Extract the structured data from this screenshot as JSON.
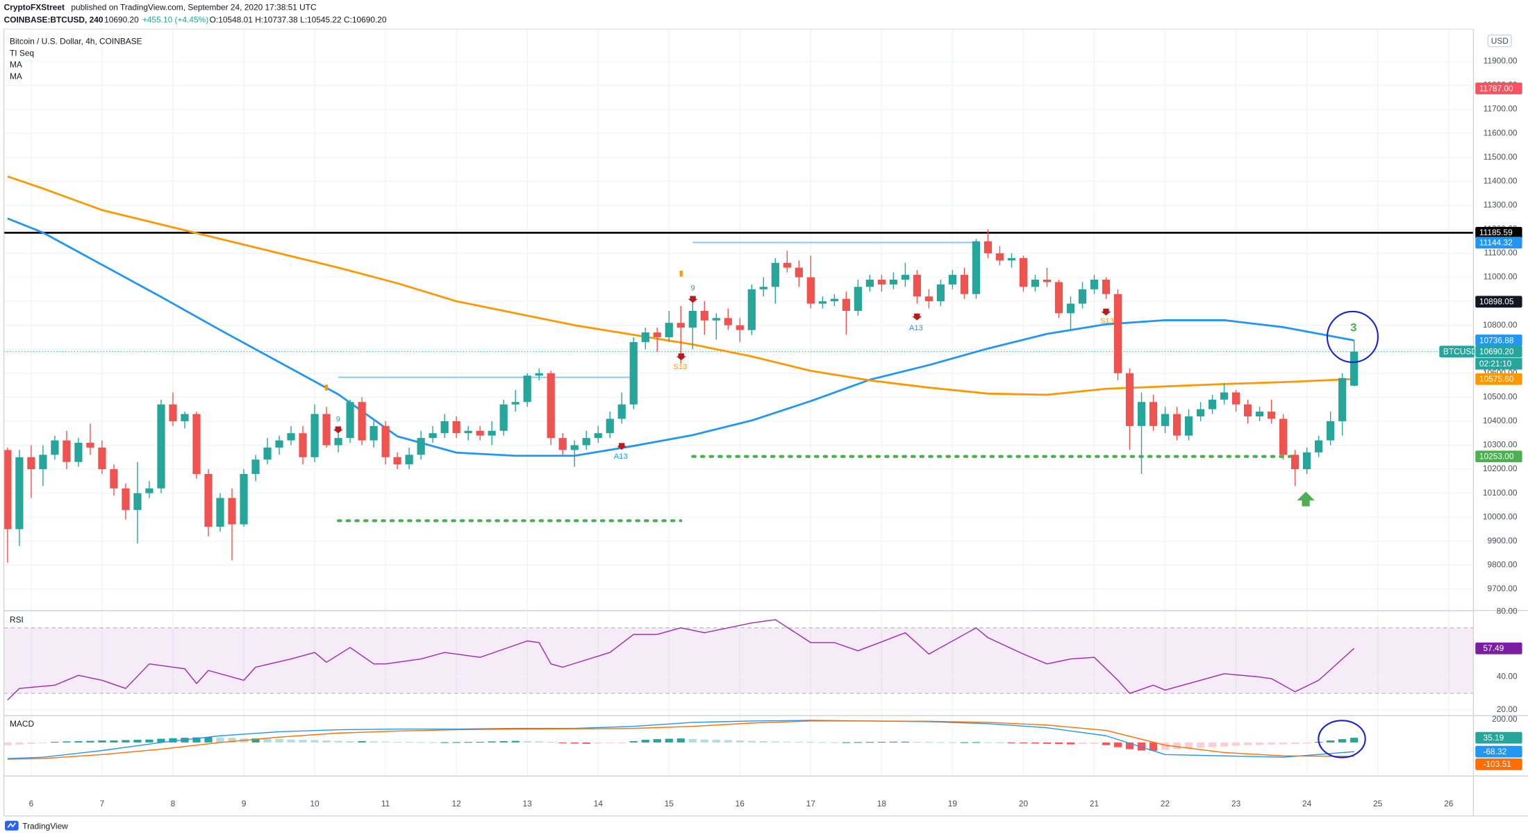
{
  "header": {
    "author": "CryptoFXStreet",
    "published": "published on TradingView.com, September 24, 2020 17:38:51 UTC",
    "symbol": "COINBASE:BTCUSD, 240",
    "last": "10690.20",
    "change": "+455.10 (+4.45%)",
    "ohlc": "O:10548.01 H:10737.38 L:10545.22 C:10690.20",
    "footer": "TradingView"
  },
  "chart_data": {
    "type": "candlestick",
    "title": "Bitcoin / U.S. Dollar, 4h, COINBASE",
    "indicator_labels": [
      "TI Seq"
    ],
    "currency": "USD",
    "up_color": "#26a69a",
    "down_color": "#ef5350",
    "categories": [
      null,
      null,
      null,
      null,
      null,
      null,
      null,
      null,
      null,
      null,
      null,
      null,
      null,
      null,
      null,
      null,
      null,
      null,
      null,
      null,
      null,
      null,
      null,
      null,
      null,
      null,
      null,
      null,
      null,
      null,
      null,
      null,
      null,
      null,
      null,
      null,
      null,
      null,
      null,
      null,
      null,
      null,
      null,
      null,
      null,
      null,
      null,
      null,
      null,
      null,
      null,
      null,
      null,
      null,
      null,
      null,
      null,
      null,
      null,
      null,
      null,
      null,
      null,
      null,
      null,
      null,
      null,
      null,
      null,
      null,
      null,
      null,
      null,
      null,
      null,
      null,
      null,
      null,
      null,
      null,
      null,
      null,
      null,
      null,
      null,
      null,
      null,
      null,
      null,
      null,
      null,
      null,
      null,
      null,
      null,
      null,
      null,
      null,
      null,
      null,
      null,
      null,
      null,
      null,
      null,
      null,
      null,
      null,
      null,
      null,
      null,
      null,
      null,
      null,
      null
    ],
    "open": [
      10280,
      9950,
      10250,
      10200,
      10260,
      10320,
      10230,
      10310,
      10290,
      10200,
      10120,
      10030,
      10100,
      10120,
      10470,
      10400,
      10430,
      10180,
      9960,
      10080,
      9970,
      10180,
      10240,
      10290,
      10320,
      10350,
      10250,
      10430,
      10300,
      10330,
      10480,
      10320,
      10380,
      10250,
      10220,
      10260,
      10330,
      10350,
      10400,
      10350,
      10360,
      10340,
      10360,
      10470,
      10480,
      10590,
      10600,
      10330,
      10280,
      10300,
      10330,
      10350,
      10410,
      10470,
      10730,
      10770,
      10750,
      10810,
      10790,
      10860,
      10820,
      10830,
      10800,
      10780,
      10950,
      10960,
      11060,
      11040,
      11000,
      10890,
      10900,
      10910,
      10860,
      10960,
      10990,
      10970,
      10990,
      11010,
      10920,
      10900,
      10970,
      11010,
      10930,
      11150,
      11100,
      11070,
      11080,
      10960,
      10990,
      10980,
      10850,
      10890,
      10950,
      10990,
      10930,
      10600,
      10380,
      10480,
      10380,
      10430,
      10340,
      10420,
      10450,
      10490,
      10520,
      10470,
      10420,
      10440,
      10410,
      10260,
      10200,
      10270,
      10320,
      10400,
      10548.01
    ],
    "high": [
      10290,
      10280,
      10300,
      10300,
      10340,
      10360,
      10330,
      10390,
      10320,
      10220,
      10140,
      10230,
      10150,
      10490,
      10520,
      10440,
      10440,
      10200,
      10100,
      10120,
      10200,
      10260,
      10330,
      10340,
      10380,
      10380,
      10470,
      10460,
      10360,
      10490,
      10500,
      10400,
      10400,
      10270,
      10290,
      10360,
      10380,
      10430,
      10420,
      10380,
      10380,
      10400,
      10490,
      10530,
      10600,
      10620,
      10610,
      10350,
      10320,
      10360,
      10380,
      10440,
      10520,
      10750,
      10790,
      10790,
      10860,
      10880,
      10920,
      10900,
      10850,
      10870,
      10830,
      10970,
      11000,
      11080,
      11110,
      11070,
      11090,
      10920,
      10930,
      10940,
      10990,
      11010,
      11010,
      11020,
      11060,
      11030,
      10950,
      10990,
      11030,
      11040,
      11160,
      11200,
      11130,
      11100,
      11090,
      11010,
      11040,
      10990,
      10920,
      10980,
      11010,
      11000,
      10950,
      10620,
      10520,
      10510,
      10460,
      10460,
      10450,
      10480,
      10510,
      10560,
      10530,
      10490,
      10460,
      10490,
      10430,
      10280,
      10290,
      10340,
      10440,
      10600,
      10737.38
    ],
    "low": [
      9810,
      9880,
      10080,
      10130,
      10240,
      10200,
      10210,
      10260,
      10180,
      10090,
      9990,
      9890,
      10080,
      10100,
      10380,
      10370,
      10160,
      9920,
      9940,
      9820,
      9960,
      10150,
      10220,
      10260,
      10300,
      10220,
      10230,
      10290,
      10270,
      10310,
      10300,
      10290,
      10220,
      10200,
      10200,
      10240,
      10310,
      10330,
      10330,
      10320,
      10320,
      10300,
      10340,
      10440,
      10460,
      10570,
      10300,
      10260,
      10210,
      10280,
      10310,
      10330,
      10390,
      10450,
      10700,
      10690,
      10730,
      10640,
      10700,
      10760,
      10740,
      10780,
      10730,
      10760,
      10920,
      10890,
      11020,
      10960,
      10870,
      10870,
      10880,
      10760,
      10840,
      10940,
      10940,
      10950,
      10960,
      10890,
      10870,
      10880,
      10950,
      10910,
      10910,
      11080,
      11050,
      11040,
      10940,
      10940,
      10960,
      10830,
      10780,
      10870,
      10930,
      10910,
      10570,
      10280,
      10180,
      10360,
      10350,
      10320,
      10320,
      10400,
      10430,
      10470,
      10440,
      10390,
      10400,
      10390,
      10240,
      10130,
      10180,
      10250,
      10300,
      10340,
      10545.22
    ],
    "close": [
      9950,
      10250,
      10200,
      10260,
      10320,
      10230,
      10310,
      10290,
      10200,
      10120,
      10030,
      10100,
      10120,
      10470,
      10400,
      10430,
      10180,
      9960,
      10080,
      9970,
      10180,
      10240,
      10290,
      10320,
      10350,
      10250,
      10430,
      10300,
      10330,
      10480,
      10320,
      10380,
      10250,
      10220,
      10260,
      10330,
      10350,
      10400,
      10350,
      10360,
      10340,
      10360,
      10470,
      10480,
      10590,
      10600,
      10330,
      10280,
      10300,
      10330,
      10350,
      10410,
      10470,
      10730,
      10770,
      10750,
      10810,
      10790,
      10860,
      10820,
      10830,
      10800,
      10780,
      10950,
      10960,
      11060,
      11040,
      11000,
      10890,
      10900,
      10910,
      10860,
      10960,
      10990,
      10970,
      10990,
      11010,
      10920,
      10900,
      10970,
      11010,
      10930,
      11150,
      11100,
      11070,
      11080,
      10960,
      10990,
      10980,
      10850,
      10890,
      10950,
      10990,
      10930,
      10600,
      10380,
      10480,
      10380,
      10430,
      10340,
      10420,
      10450,
      10490,
      10520,
      10470,
      10420,
      10440,
      10410,
      10260,
      10200,
      10270,
      10320,
      10400,
      10580,
      10690.2
    ],
    "xlim": [
      -0.31,
      124.1
    ],
    "xticks": [
      {
        "value": 2,
        "label": "6"
      },
      {
        "value": 8,
        "label": "7"
      },
      {
        "value": 14,
        "label": "8"
      },
      {
        "value": 20,
        "label": "9"
      },
      {
        "value": 26,
        "label": "10"
      },
      {
        "value": 32,
        "label": "11"
      },
      {
        "value": 38,
        "label": "12"
      },
      {
        "value": 44,
        "label": "13"
      },
      {
        "value": 50,
        "label": "14"
      },
      {
        "value": 56,
        "label": "15"
      },
      {
        "value": 62,
        "label": "16"
      },
      {
        "value": 68,
        "label": "17"
      },
      {
        "value": 74,
        "label": "18"
      },
      {
        "value": 80,
        "label": "19"
      },
      {
        "value": 86,
        "label": "20"
      },
      {
        "value": 92,
        "label": "21"
      },
      {
        "value": 98,
        "label": "22"
      },
      {
        "value": 104,
        "label": "23"
      },
      {
        "value": 110,
        "label": "24"
      },
      {
        "value": 116,
        "label": "25"
      },
      {
        "value": 122,
        "label": "26"
      }
    ],
    "ylim": [
      9615,
      12034
    ],
    "yticks": [
      {
        "value": 9700,
        "label": "9700.00"
      },
      {
        "value": 9800,
        "label": "9800.00"
      },
      {
        "value": 9900,
        "label": "9900.00"
      },
      {
        "value": 10000,
        "label": "10000.00"
      },
      {
        "value": 10100,
        "label": "10100.00"
      },
      {
        "value": 10200,
        "label": "10200.00"
      },
      {
        "value": 10300,
        "label": "10300.00"
      },
      {
        "value": 10400,
        "label": "10400.00"
      },
      {
        "value": 10500,
        "label": "10500.00"
      },
      {
        "value": 10600,
        "label": "10600.00"
      },
      {
        "value": 10700,
        "label": "10700.00"
      },
      {
        "value": 10800,
        "label": "10800.00"
      },
      {
        "value": 10900,
        "label": "10900.00"
      },
      {
        "value": 11000,
        "label": "11000.00"
      },
      {
        "value": 11100,
        "label": "11100.00"
      },
      {
        "value": 11200,
        "label": "11200.00"
      },
      {
        "value": 11300,
        "label": "11300.00"
      },
      {
        "value": 11400,
        "label": "11400.00"
      },
      {
        "value": 11500,
        "label": "11500.00"
      },
      {
        "value": 11600,
        "label": "11600.00"
      },
      {
        "value": 11700,
        "label": "11700.00"
      },
      {
        "value": 11800,
        "label": "11800.00"
      },
      {
        "value": 11900,
        "label": "11900.00"
      }
    ],
    "grid": true,
    "moving_averages": [
      {
        "label": "MA",
        "color": "#2196f3",
        "x": [
          0,
          3,
          8,
          13,
          18,
          23,
          28,
          33,
          38,
          43,
          48,
          53,
          58,
          63,
          68,
          73,
          78,
          83,
          88,
          93,
          98,
          103,
          108,
          114
        ],
        "values": [
          11245,
          11186,
          11052,
          10918,
          10780,
          10646,
          10512,
          10337,
          10269,
          10256,
          10256,
          10297,
          10342,
          10403,
          10484,
          10573,
          10634,
          10703,
          10764,
          10804,
          10821,
          10821,
          10792,
          10736.88
        ]
      },
      {
        "label": "MA",
        "color": "#ff9800",
        "x": [
          0,
          3,
          8,
          13,
          18,
          23,
          28,
          33,
          38,
          43,
          48,
          53,
          58,
          63,
          68,
          73,
          78,
          83,
          88,
          93,
          98,
          103,
          108,
          114
        ],
        "values": [
          11420,
          11370,
          11280,
          11220,
          11160,
          11100,
          11040,
          10975,
          10900,
          10850,
          10800,
          10760,
          10720,
          10670,
          10610,
          10570,
          10540,
          10515,
          10510,
          10535,
          10545,
          10555,
          10563,
          10575.6
        ]
      }
    ],
    "levels": [
      {
        "value": 11185.59,
        "x": [
          -0.31,
          124.1
        ],
        "color": "#000000",
        "style": "solid"
      },
      {
        "value": 10583,
        "x": [
          28,
          53
        ],
        "color": "#90caf9",
        "style": "solid"
      },
      {
        "value": 11145,
        "x": [
          58,
          82
        ],
        "color": "#90caf9",
        "style": "solid"
      },
      {
        "value": 9985,
        "x": [
          28,
          57
        ],
        "color": "#4caf50",
        "style": "dotted"
      },
      {
        "value": 10253,
        "x": [
          58,
          109
        ],
        "color": "#4caf50",
        "style": "dotted"
      }
    ],
    "badges": [
      {
        "value": 11787,
        "label": "11787.00",
        "color": "#f7525f"
      },
      {
        "value": 11185.59,
        "label": "11185.59",
        "color": "#000000"
      },
      {
        "value": 11144.32,
        "label": "11144.32",
        "color": "#2196f3"
      },
      {
        "value": 10898.05,
        "label": "10898.05",
        "color": "#131722"
      },
      {
        "value": 10736.88,
        "label": "10736.88",
        "color": "#2196f3"
      },
      {
        "value": 10575.6,
        "label": "10575.60",
        "color": "#ff9800"
      },
      {
        "value": 10253,
        "label": "10253.00",
        "color": "#4caf50"
      }
    ],
    "last_price": {
      "value": 10690.2,
      "label": "10690.20",
      "symbol": "BTCUSD",
      "countdown": "02:21:10",
      "color": "#26a69a"
    },
    "annotations": [
      {
        "text": "9",
        "color": "#26a69a"
      },
      {
        "text": "9",
        "color": "#26a69a"
      },
      {
        "text": "A13",
        "color": "#2196f3"
      },
      {
        "text": "A13",
        "color": "#2196f3"
      },
      {
        "text": "S13",
        "color": "#ff9800"
      },
      {
        "text": "S13",
        "color": "#ff9800"
      },
      {
        "text": "3",
        "color": "#4caf50"
      }
    ],
    "rsi": {
      "title": "RSI",
      "color": "#9c27b0",
      "ylim": [
        17,
        80.6
      ],
      "band": [
        30,
        70
      ],
      "yticks": [
        {
          "value": 20,
          "label": "20.00"
        },
        {
          "value": 40,
          "label": "40.00"
        },
        {
          "value": 80,
          "label": "80.00"
        }
      ],
      "x": [
        0,
        1,
        4,
        6,
        8,
        10,
        12,
        15,
        16,
        17,
        20,
        21,
        24,
        26,
        27,
        29,
        31,
        32,
        35,
        37,
        40,
        44,
        45,
        46,
        47,
        51,
        53,
        55,
        57,
        59,
        63,
        65,
        68,
        70,
        72,
        76,
        78,
        82,
        83,
        86,
        88,
        90,
        92,
        94,
        95,
        97,
        98,
        103,
        106,
        107,
        109,
        111,
        114
      ],
      "values": [
        26,
        33,
        35,
        41,
        38,
        33,
        48,
        45,
        36,
        44,
        38,
        46,
        51,
        55,
        49,
        58,
        48,
        48,
        51,
        55,
        52,
        62,
        61,
        48,
        46,
        55,
        66,
        66,
        70,
        67,
        73,
        75,
        61,
        61,
        56,
        67,
        54,
        70,
        64,
        54,
        48,
        51,
        52,
        38,
        30,
        35,
        32,
        42,
        40,
        39,
        31,
        38,
        57.49
      ]
    },
    "macd": {
      "title": "MACD",
      "ylim": [
        -250,
        200
      ],
      "yticks": [
        {
          "value": 200,
          "label": "200.00"
        }
      ],
      "histogram_colors": {
        "grow_above": "#26a69a",
        "fall_above": "#b2dfdb",
        "grow_below": "#ffcdd2",
        "fall_below": "#ff5252"
      },
      "histogram": [
        -20,
        -15,
        -10,
        -5,
        5,
        8,
        10,
        12,
        15,
        15,
        18,
        20,
        22,
        28,
        32,
        35,
        38,
        40,
        38,
        35,
        30,
        30,
        28,
        25,
        22,
        20,
        18,
        15,
        12,
        10,
        10,
        8,
        6,
        5,
        4,
        3,
        2,
        2,
        3,
        4,
        5,
        8,
        10,
        12,
        10,
        8,
        5,
        -5,
        -8,
        -10,
        -8,
        -5,
        -2,
        10,
        20,
        25,
        28,
        30,
        26,
        22,
        20,
        18,
        15,
        12,
        10,
        8,
        6,
        5,
        4,
        3,
        2,
        2,
        3,
        4,
        5,
        6,
        6,
        5,
        4,
        3,
        2,
        2,
        3,
        2,
        1,
        -2,
        -5,
        -8,
        -10,
        -12,
        -14,
        -12,
        -10,
        -20,
        -35,
        -50,
        -60,
        -62,
        -55,
        -50,
        -45,
        -40,
        -35,
        -30,
        -25,
        -20,
        -18,
        -15,
        -14,
        -12,
        -8,
        5,
        15,
        25,
        35.19
      ],
      "x": [
        0,
        3,
        8,
        13,
        18,
        23,
        28,
        33,
        38,
        43,
        48,
        53,
        58,
        63,
        68,
        73,
        78,
        83,
        88,
        93,
        98,
        103,
        108,
        114
      ],
      "series": [
        {
          "color": "#2196f3",
          "values": [
            -120,
            -110,
            -60,
            0,
            50,
            80,
            95,
            100,
            100,
            105,
            105,
            120,
            150,
            160,
            165,
            160,
            155,
            140,
            110,
            50,
            -90,
            -100,
            -110,
            -68.32
          ]
        },
        {
          "color": "#ff6d00",
          "values": [
            -125,
            -120,
            -90,
            -50,
            0,
            40,
            70,
            85,
            95,
            100,
            102,
            105,
            120,
            145,
            160,
            160,
            158,
            150,
            130,
            90,
            -20,
            -75,
            -100,
            -103.51
          ]
        }
      ]
    }
  }
}
